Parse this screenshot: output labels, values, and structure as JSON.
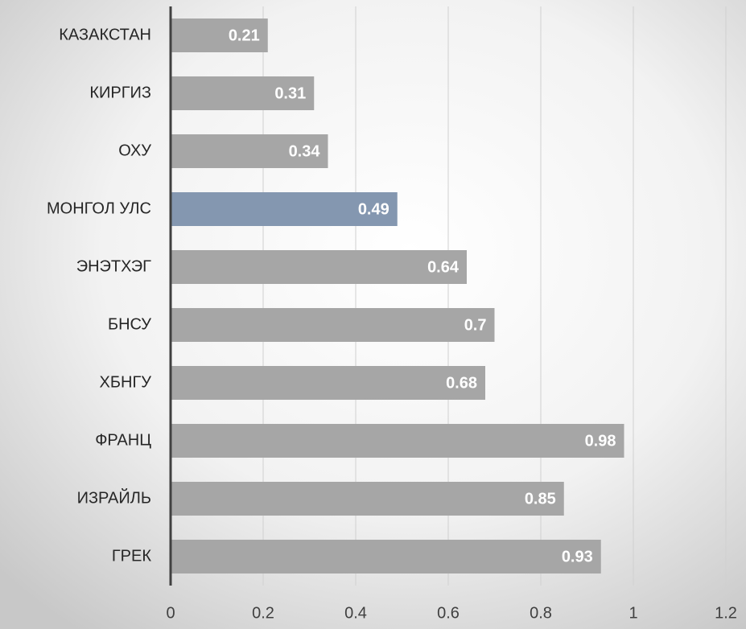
{
  "chart_data": {
    "type": "hbar",
    "categories": [
      "КАЗАКСТАН",
      "КИРГИЗ",
      "ОХУ",
      "МОНГОЛ УЛС",
      "ЭНЭТХЭГ",
      "БНСУ",
      "ХБНГУ",
      "ФРАНЦ",
      "ИЗРАЙЛЬ",
      "ГРЕК"
    ],
    "values": [
      0.21,
      0.31,
      0.34,
      0.49,
      0.64,
      0.7,
      0.68,
      0.98,
      0.85,
      0.93
    ],
    "colors": [
      "#a6a6a6",
      "#a6a6a6",
      "#a6a6a6",
      "#8497b0",
      "#a6a6a6",
      "#a6a6a6",
      "#a6a6a6",
      "#a6a6a6",
      "#a6a6a6",
      "#a6a6a6"
    ],
    "xlim": [
      0,
      1.2
    ],
    "xticks": [
      0,
      0.2,
      0.4,
      0.6,
      0.8,
      1,
      1.2
    ],
    "grid": true
  }
}
